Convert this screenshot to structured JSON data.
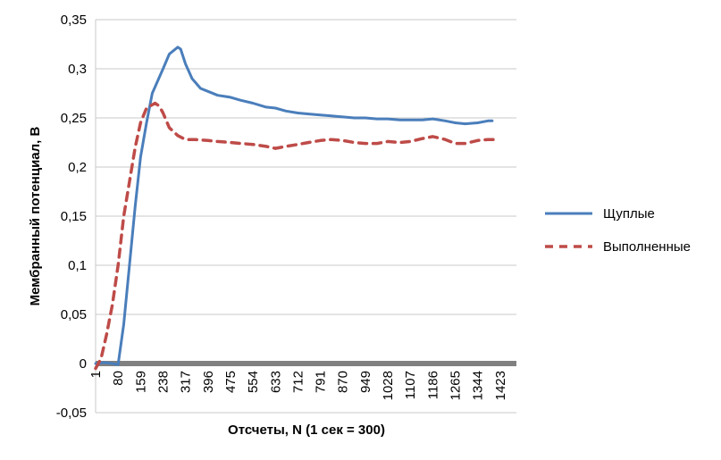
{
  "chart_data": {
    "type": "line",
    "xlabel": "Отсчеты, N (1 сек = 300)",
    "ylabel": "Мембранный потенциал, В",
    "xlim": [
      1,
      1480
    ],
    "ylim": [
      -0.05,
      0.35
    ],
    "grid": true,
    "legend_position": "right",
    "x_tick_labels": [
      "1",
      "80",
      "159",
      "238",
      "317",
      "396",
      "475",
      "554",
      "633",
      "712",
      "791",
      "870",
      "949",
      "1028",
      "1107",
      "1186",
      "1265",
      "1344",
      "1423"
    ],
    "y_tick_labels": [
      "-0,05",
      "0",
      "0,05",
      "0,1",
      "0,15",
      "0,2",
      "0,25",
      "0,3",
      "0,35"
    ],
    "series": [
      {
        "name": "Щуплые",
        "color": "#4a7ebb",
        "style": "solid",
        "x": [
          1,
          30,
          60,
          80,
          100,
          120,
          140,
          159,
          180,
          200,
          238,
          260,
          290,
          300,
          317,
          340,
          370,
          396,
          430,
          475,
          510,
          554,
          600,
          633,
          670,
          712,
          750,
          791,
          830,
          870,
          910,
          949,
          990,
          1028,
          1070,
          1107,
          1150,
          1186,
          1230,
          1265,
          1300,
          1344,
          1380,
          1395
        ],
        "values": [
          0.0,
          0.001,
          0.0,
          -0.001,
          0.04,
          0.1,
          0.16,
          0.21,
          0.245,
          0.275,
          0.3,
          0.315,
          0.322,
          0.32,
          0.305,
          0.29,
          0.28,
          0.277,
          0.273,
          0.271,
          0.268,
          0.265,
          0.261,
          0.26,
          0.257,
          0.255,
          0.254,
          0.253,
          0.252,
          0.251,
          0.25,
          0.25,
          0.249,
          0.249,
          0.248,
          0.248,
          0.248,
          0.249,
          0.247,
          0.245,
          0.244,
          0.245,
          0.247,
          0.247
        ]
      },
      {
        "name": "Выполненные",
        "color": "#be4b48",
        "style": "dashed",
        "x": [
          1,
          20,
          40,
          60,
          80,
          100,
          120,
          140,
          159,
          180,
          210,
          225,
          238,
          260,
          290,
          317,
          350,
          396,
          430,
          475,
          510,
          554,
          600,
          633,
          670,
          712,
          750,
          791,
          830,
          870,
          910,
          949,
          990,
          1028,
          1070,
          1107,
          1150,
          1186,
          1230,
          1265,
          1300,
          1344,
          1380,
          1420
        ],
        "values": [
          -0.005,
          0.005,
          0.03,
          0.06,
          0.1,
          0.15,
          0.185,
          0.22,
          0.245,
          0.26,
          0.265,
          0.262,
          0.255,
          0.24,
          0.232,
          0.228,
          0.228,
          0.227,
          0.226,
          0.225,
          0.224,
          0.223,
          0.221,
          0.219,
          0.221,
          0.223,
          0.225,
          0.227,
          0.228,
          0.227,
          0.225,
          0.224,
          0.224,
          0.226,
          0.225,
          0.226,
          0.229,
          0.231,
          0.228,
          0.224,
          0.224,
          0.227,
          0.228,
          0.228
        ]
      }
    ]
  }
}
